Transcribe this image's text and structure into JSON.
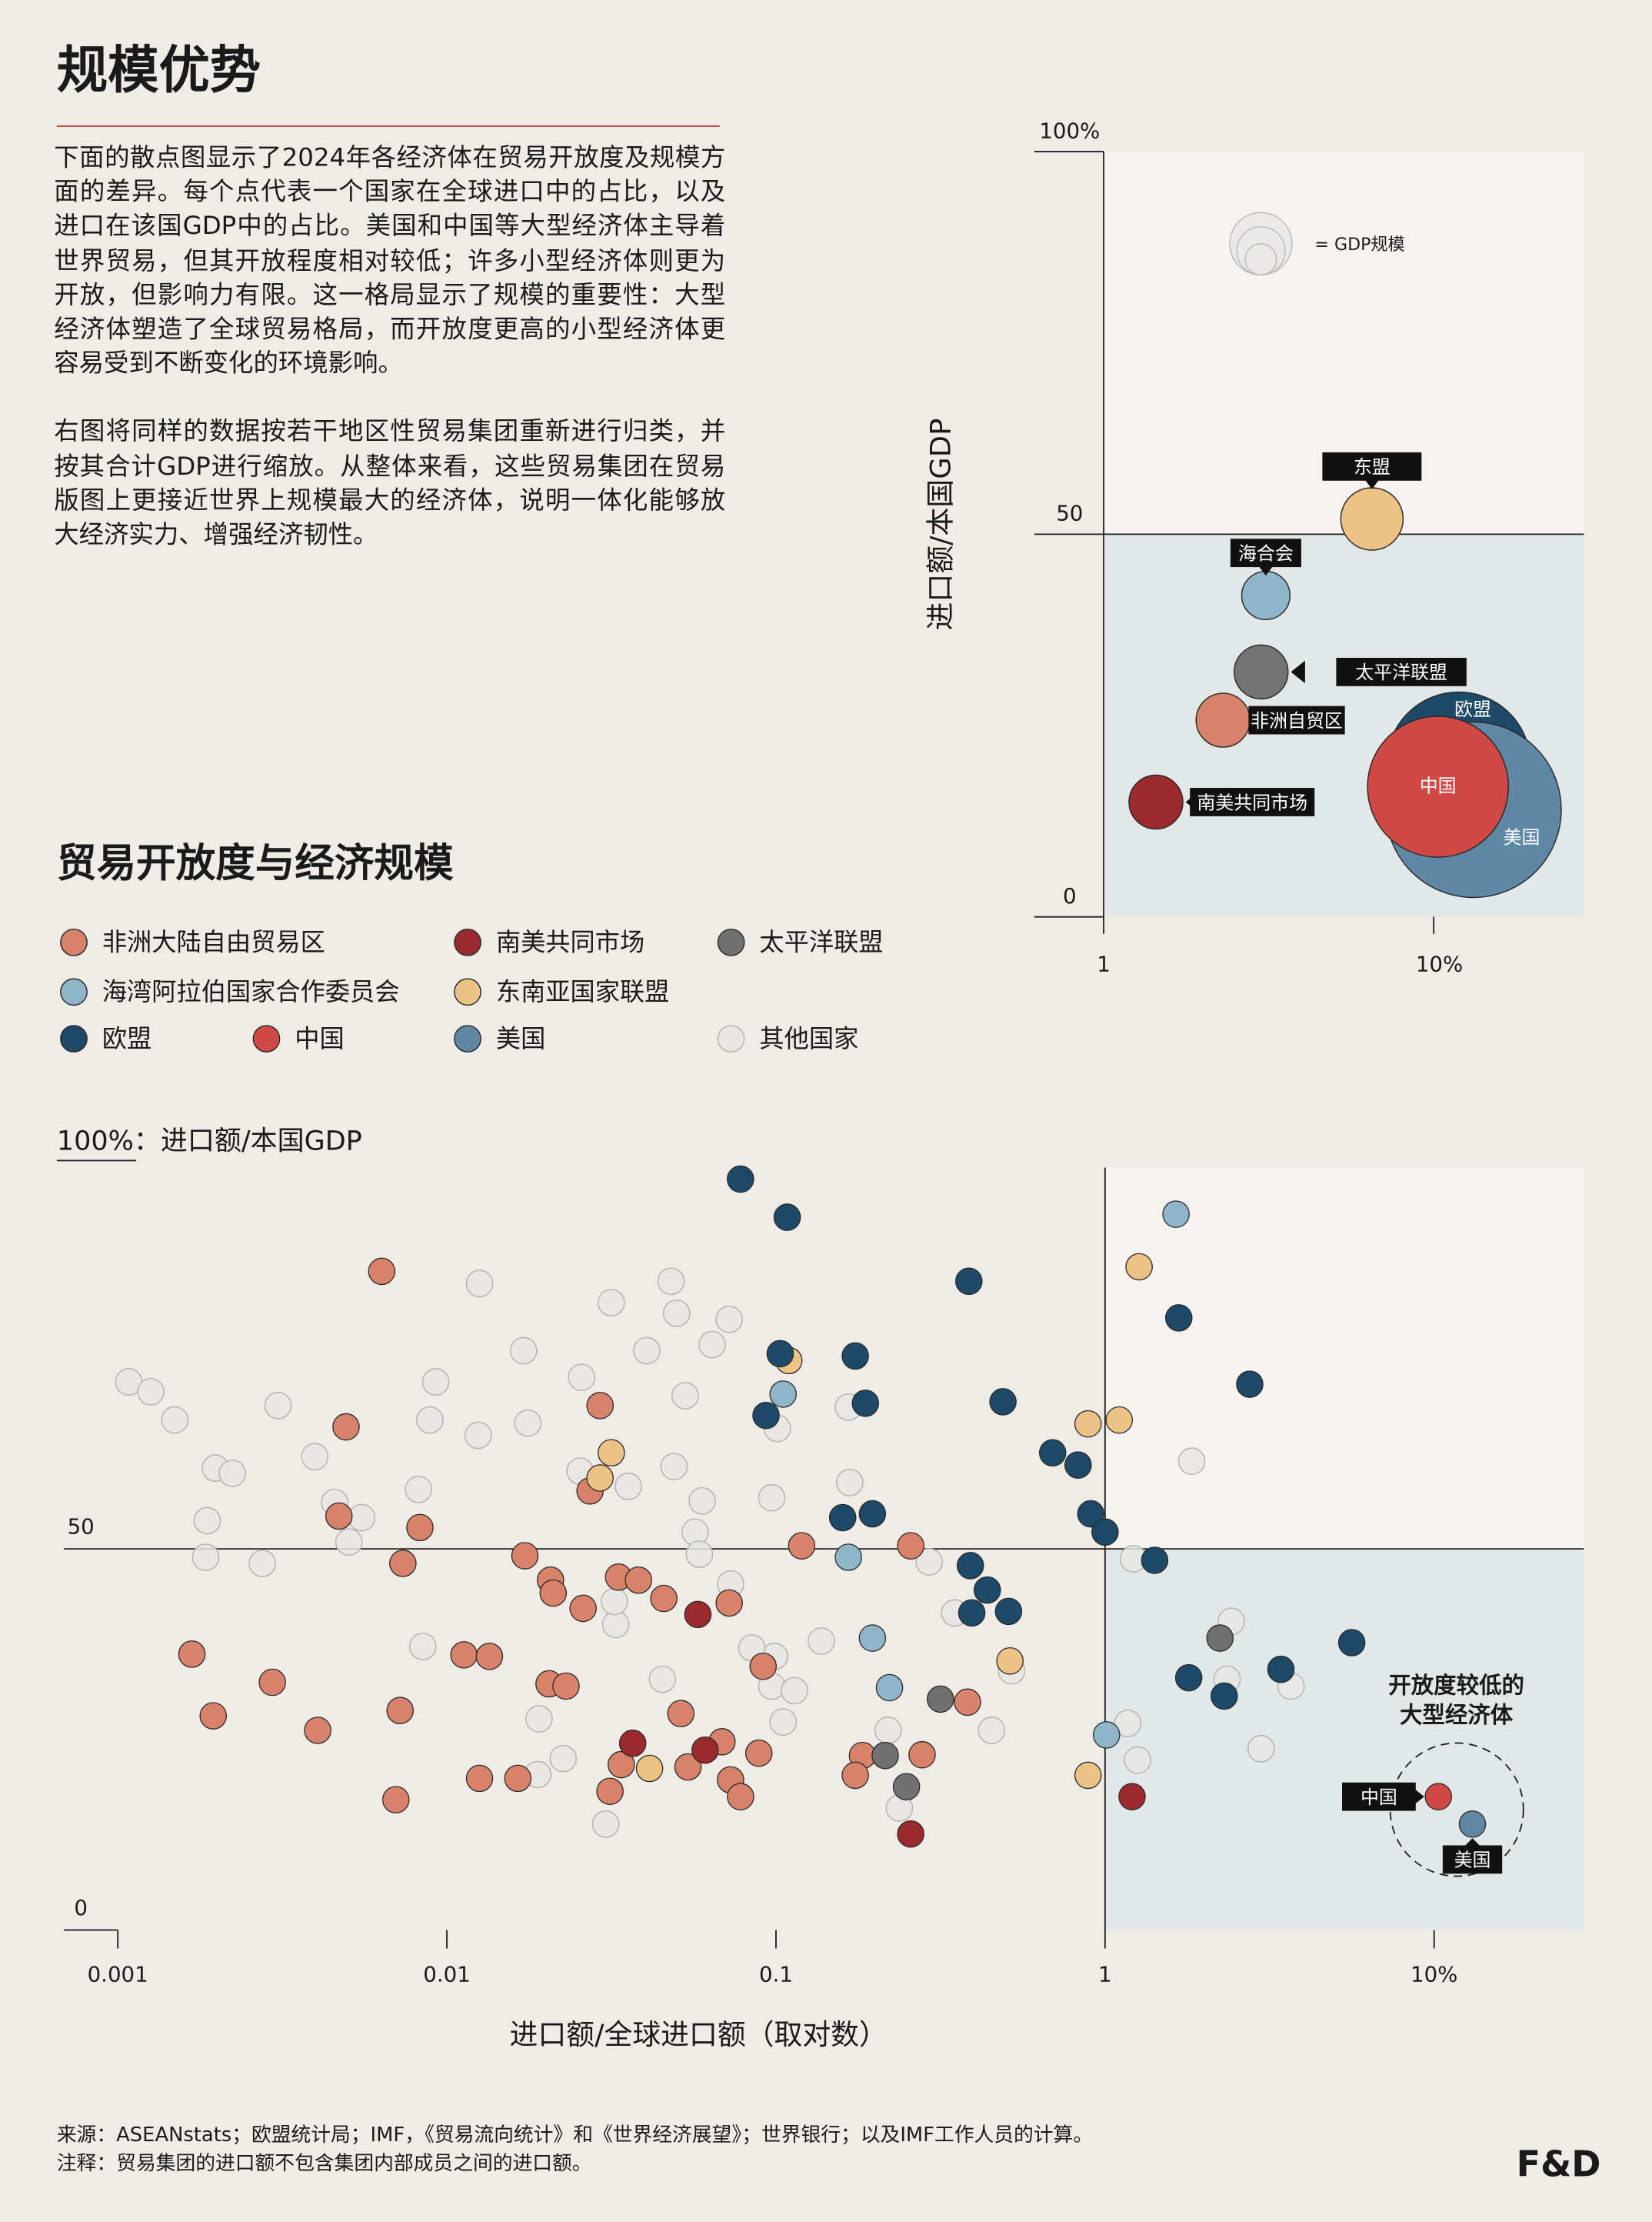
{
  "header": {
    "title": "规模优势"
  },
  "intro": {
    "paragraphs": [
      "下面的散点图显示了2024年各经济体在贸易开放度及规模方面的差异。每个点代表一个国家在全球进口中的占比，以及进口在该国GDP中的占比。美国和中国等大型经济体主导着世界贸易，但其开放程度相对较低；许多小型经济体则更为开放，但影响力有限。这一格局显示了规模的重要性：大型经济体塑造了全球贸易格局，而开放度更高的小型经济体更容易受到不断变化的环境影响。",
      "右图将同样的数据按若干地区性贸易集团重新进行归类，并按其合计GDP进行缩放。从整体来看，这些贸易集团在贸易版图上更接近世界上规模最大的经济体，说明一体化能够放大经济实力、增强经济韧性。"
    ]
  },
  "chart_data": [
    {
      "type": "bubble",
      "ylabel": "进口额/本国GDP",
      "size_legend": "= GDP规模",
      "xscale": "log",
      "xlim": [
        1,
        28.5
      ],
      "ylim": [
        0,
        100
      ],
      "xticks": [
        1,
        {
          "value": 10,
          "label": "10%"
        }
      ],
      "yticks": [
        0,
        50,
        {
          "value": 100,
          "label": "100%"
        }
      ],
      "series": [
        {
          "name": "东盟",
          "color": "#ecc285",
          "x": [
            6.5
          ],
          "values": [
            52
          ],
          "sizes": [
            3.66
          ]
        },
        {
          "name": "海合会",
          "color": "#8fb6c8",
          "x": [
            3.1
          ],
          "values": [
            42
          ],
          "sizes": [
            2.19
          ]
        },
        {
          "name": "太平洋联盟",
          "color": "#747474",
          "x": [
            3.0
          ],
          "values": [
            32
          ],
          "sizes": [
            2.73
          ]
        },
        {
          "name": "非洲自贸区",
          "color": "#d9826a",
          "x": [
            2.3
          ],
          "values": [
            25.7
          ],
          "sizes": [
            2.73
          ]
        },
        {
          "name": "南美共同市场",
          "color": "#9b2a2e",
          "x": [
            1.44
          ],
          "values": [
            15
          ],
          "sizes": [
            2.73
          ]
        },
        {
          "name": "欧盟",
          "color": "#1c4a68",
          "x": [
            11.9
          ],
          "values": [
            20
          ],
          "sizes": [
            19.4
          ]
        },
        {
          "name": "美国",
          "color": "#5f88a4",
          "x": [
            13.2
          ],
          "values": [
            14
          ],
          "sizes": [
            29
          ]
        },
        {
          "name": "中国",
          "color": "#d04a45",
          "x": [
            10.3
          ],
          "values": [
            17
          ],
          "sizes": [
            18.7
          ]
        }
      ]
    },
    {
      "type": "scatter",
      "title": "贸易开放度与经济规模",
      "ylabel": "100%：进口额/本国GDP",
      "xlabel": "进口额/全球进口额（取对数）",
      "xscale": "log",
      "xlim": [
        0.000686,
        28.5
      ],
      "ylim": [
        0,
        100
      ],
      "xticks": [
        0.001,
        0.01,
        0.1,
        1,
        {
          "value": 10,
          "label": "10%"
        }
      ],
      "yticks": [
        0,
        50
      ],
      "annotation": [
        "开放度较低的",
        "大型经济体"
      ],
      "series": [
        {
          "name": "其他国家",
          "color": "#e8e6e4",
          "x": [
            0.00108,
            0.00126,
            0.00149,
            0.00307,
            0.00397,
            0.00198,
            0.00223,
            0.00456,
            0.00551,
            0.00187,
            0.00185,
            0.00275,
            0.00504,
            0.0082,
            0.00925,
            0.00888,
            0.01257,
            0.01245,
            0.0171,
            0.01762,
            0.0316,
            0.02567,
            0.048,
            0.0499,
            0.0405,
            0.064,
            0.0721,
            0.053,
            0.049,
            0.0356,
            0.0254,
            0.0597,
            0.0568,
            0.0585,
            0.0728,
            0.0971,
            0.101,
            0.166,
            0.1675,
            0.2922,
            0.3491,
            0.1374,
            0.099,
            0.0845,
            0.0971,
            0.1138,
            0.0452,
            0.00845,
            0.01906,
            0.02256,
            0.01888,
            0.0304,
            0.0326,
            0.0323,
            0.2192,
            0.2371,
            0.4519,
            0.5199,
            1.172,
            1.256,
            1.219,
            1.833,
            2.419,
            2.348,
            3.672,
            2.979,
            0.1051
          ],
          "values": [
            71.9,
            70.6,
            66.9,
            68.8,
            62.1,
            60.6,
            59.9,
            56.1,
            54.1,
            53.7,
            48.9,
            48.1,
            50.9,
            57.8,
            71.9,
            66.9,
            84.8,
            64.9,
            76,
            66.5,
            82.3,
            72.5,
            85.1,
            80.9,
            76,
            76.8,
            80.1,
            70.1,
            60.8,
            58.2,
            60.2,
            56.3,
            52.2,
            49.3,
            45.4,
            56.7,
            65.8,
            68.6,
            58.7,
            48.3,
            41.6,
            37.9,
            35.9,
            37,
            32,
            31.4,
            32.9,
            37.2,
            27.7,
            22.5,
            20.4,
            13.9,
            40.1,
            43.1,
            26.2,
            16,
            26.2,
            34,
            27.1,
            22.3,
            48.7,
            61.5,
            40.5,
            32.9,
            32,
            23.8,
            27.3
          ]
        },
        {
          "name": "非洲大陆自由贸易区",
          "color": "#d9826a",
          "x": [
            0.00634,
            0.00494,
            0.0047,
            0.00828,
            0.00735,
            0.00168,
            0.00295,
            0.00195,
            0.00405,
            0.007,
            0.00721,
            0.01127,
            0.01347,
            0.01257,
            0.01726,
            0.02065,
            0.02104,
            0.02594,
            0.03325,
            0.03822,
            0.04563,
            0.07211,
            0.02921,
            0.02723,
            0.02044,
            0.02302,
            0.01643,
            0.03131,
            0.03388,
            0.05404,
            0.0514,
            0.06855,
            0.07278,
            0.08873,
            0.07805,
            0.09141,
            0.1197,
            0.2567,
            0.3819,
            0.1832,
            0.1742,
            0.278
          ],
          "values": [
            86.4,
            66,
            54.3,
            52.8,
            48.1,
            36.2,
            32.5,
            28.1,
            26.2,
            17.1,
            28.8,
            36.1,
            35.9,
            19.9,
            49.1,
            45.9,
            44.2,
            42.2,
            46.3,
            45.9,
            43.5,
            42.9,
            68.8,
            57.6,
            32.3,
            32,
            19.9,
            18.2,
            21.7,
            21.4,
            28.4,
            24.7,
            19.7,
            23.2,
            17.5,
            34.6,
            50.4,
            50.4,
            29.9,
            22.9,
            20.3,
            23
          ]
        },
        {
          "name": "南美共同市场",
          "color": "#9b2a2e",
          "x": [
            0.0579,
            0.0367,
            0.0609,
            0.2567,
            1.208
          ],
          "values": [
            41.4,
            24.5,
            23.6,
            12.6,
            17.5
          ]
        },
        {
          "name": "太平洋联盟",
          "color": "#717171",
          "x": [
            0.316,
            0.2148,
            0.2492,
            2.234
          ],
          "values": [
            30.3,
            22.9,
            18.8,
            38.3
          ]
        },
        {
          "name": "海湾阿拉伯国家合作委员会",
          "color": "#8fb6c8",
          "x": [
            1.643,
            0.1051,
            0.166,
            0.1964,
            0.2213,
            1.01
          ],
          "values": [
            93.9,
            70.3,
            48.9,
            38.3,
            31.8,
            25.6
          ]
        },
        {
          "name": "东南亚国家联盟",
          "color": "#ecc285",
          "x": [
            1.269,
            0.1094,
            0.0316,
            0.0292,
            0.888,
            1.104,
            0.514,
            0.0413,
            0.888
          ],
          "values": [
            87,
            74.7,
            62.6,
            59.3,
            66.4,
            66.9,
            35.3,
            21.2,
            20.3
          ]
        },
        {
          "name": "欧盟",
          "color": "#1c4a68",
          "x": [
            0.078,
            0.1082,
            0.3857,
            1.675,
            2.752,
            0.103,
            0.1742,
            0.187,
            0.0933,
            0.4895,
            0.693,
            0.828,
            0.905,
            1.0,
            1.415,
            0.1595,
            0.1964,
            0.3897,
            0.4387,
            0.5091,
            0.3936,
            5.62,
            1.796,
            2.302,
            3.423
          ],
          "values": [
            98.5,
            93.5,
            85.1,
            80.3,
            71.6,
            75.6,
            75.3,
            69.1,
            67.5,
            69.3,
            62.6,
            61,
            54.6,
            52.2,
            48.5,
            54.1,
            54.6,
            47.8,
            44.6,
            41.8,
            41.6,
            37.7,
            33.1,
            30.7,
            34.2
          ]
        },
        {
          "name": "中国",
          "color": "#d04a45",
          "x": [
            10.3
          ],
          "values": [
            17.5
          ]
        },
        {
          "name": "美国",
          "color": "#5f88a4",
          "x": [
            13.07
          ],
          "values": [
            13.9
          ]
        }
      ]
    }
  ],
  "footer": {
    "source": "来源：ASEANstats；欧盟统计局；IMF，《贸易流向统计》和《世界经济展望》；世界银行；以及IMF工作人员的计算。",
    "note": "注释：贸易集团的进口额不包含集团内部成员之间的进口额。",
    "logo": "F&D"
  }
}
